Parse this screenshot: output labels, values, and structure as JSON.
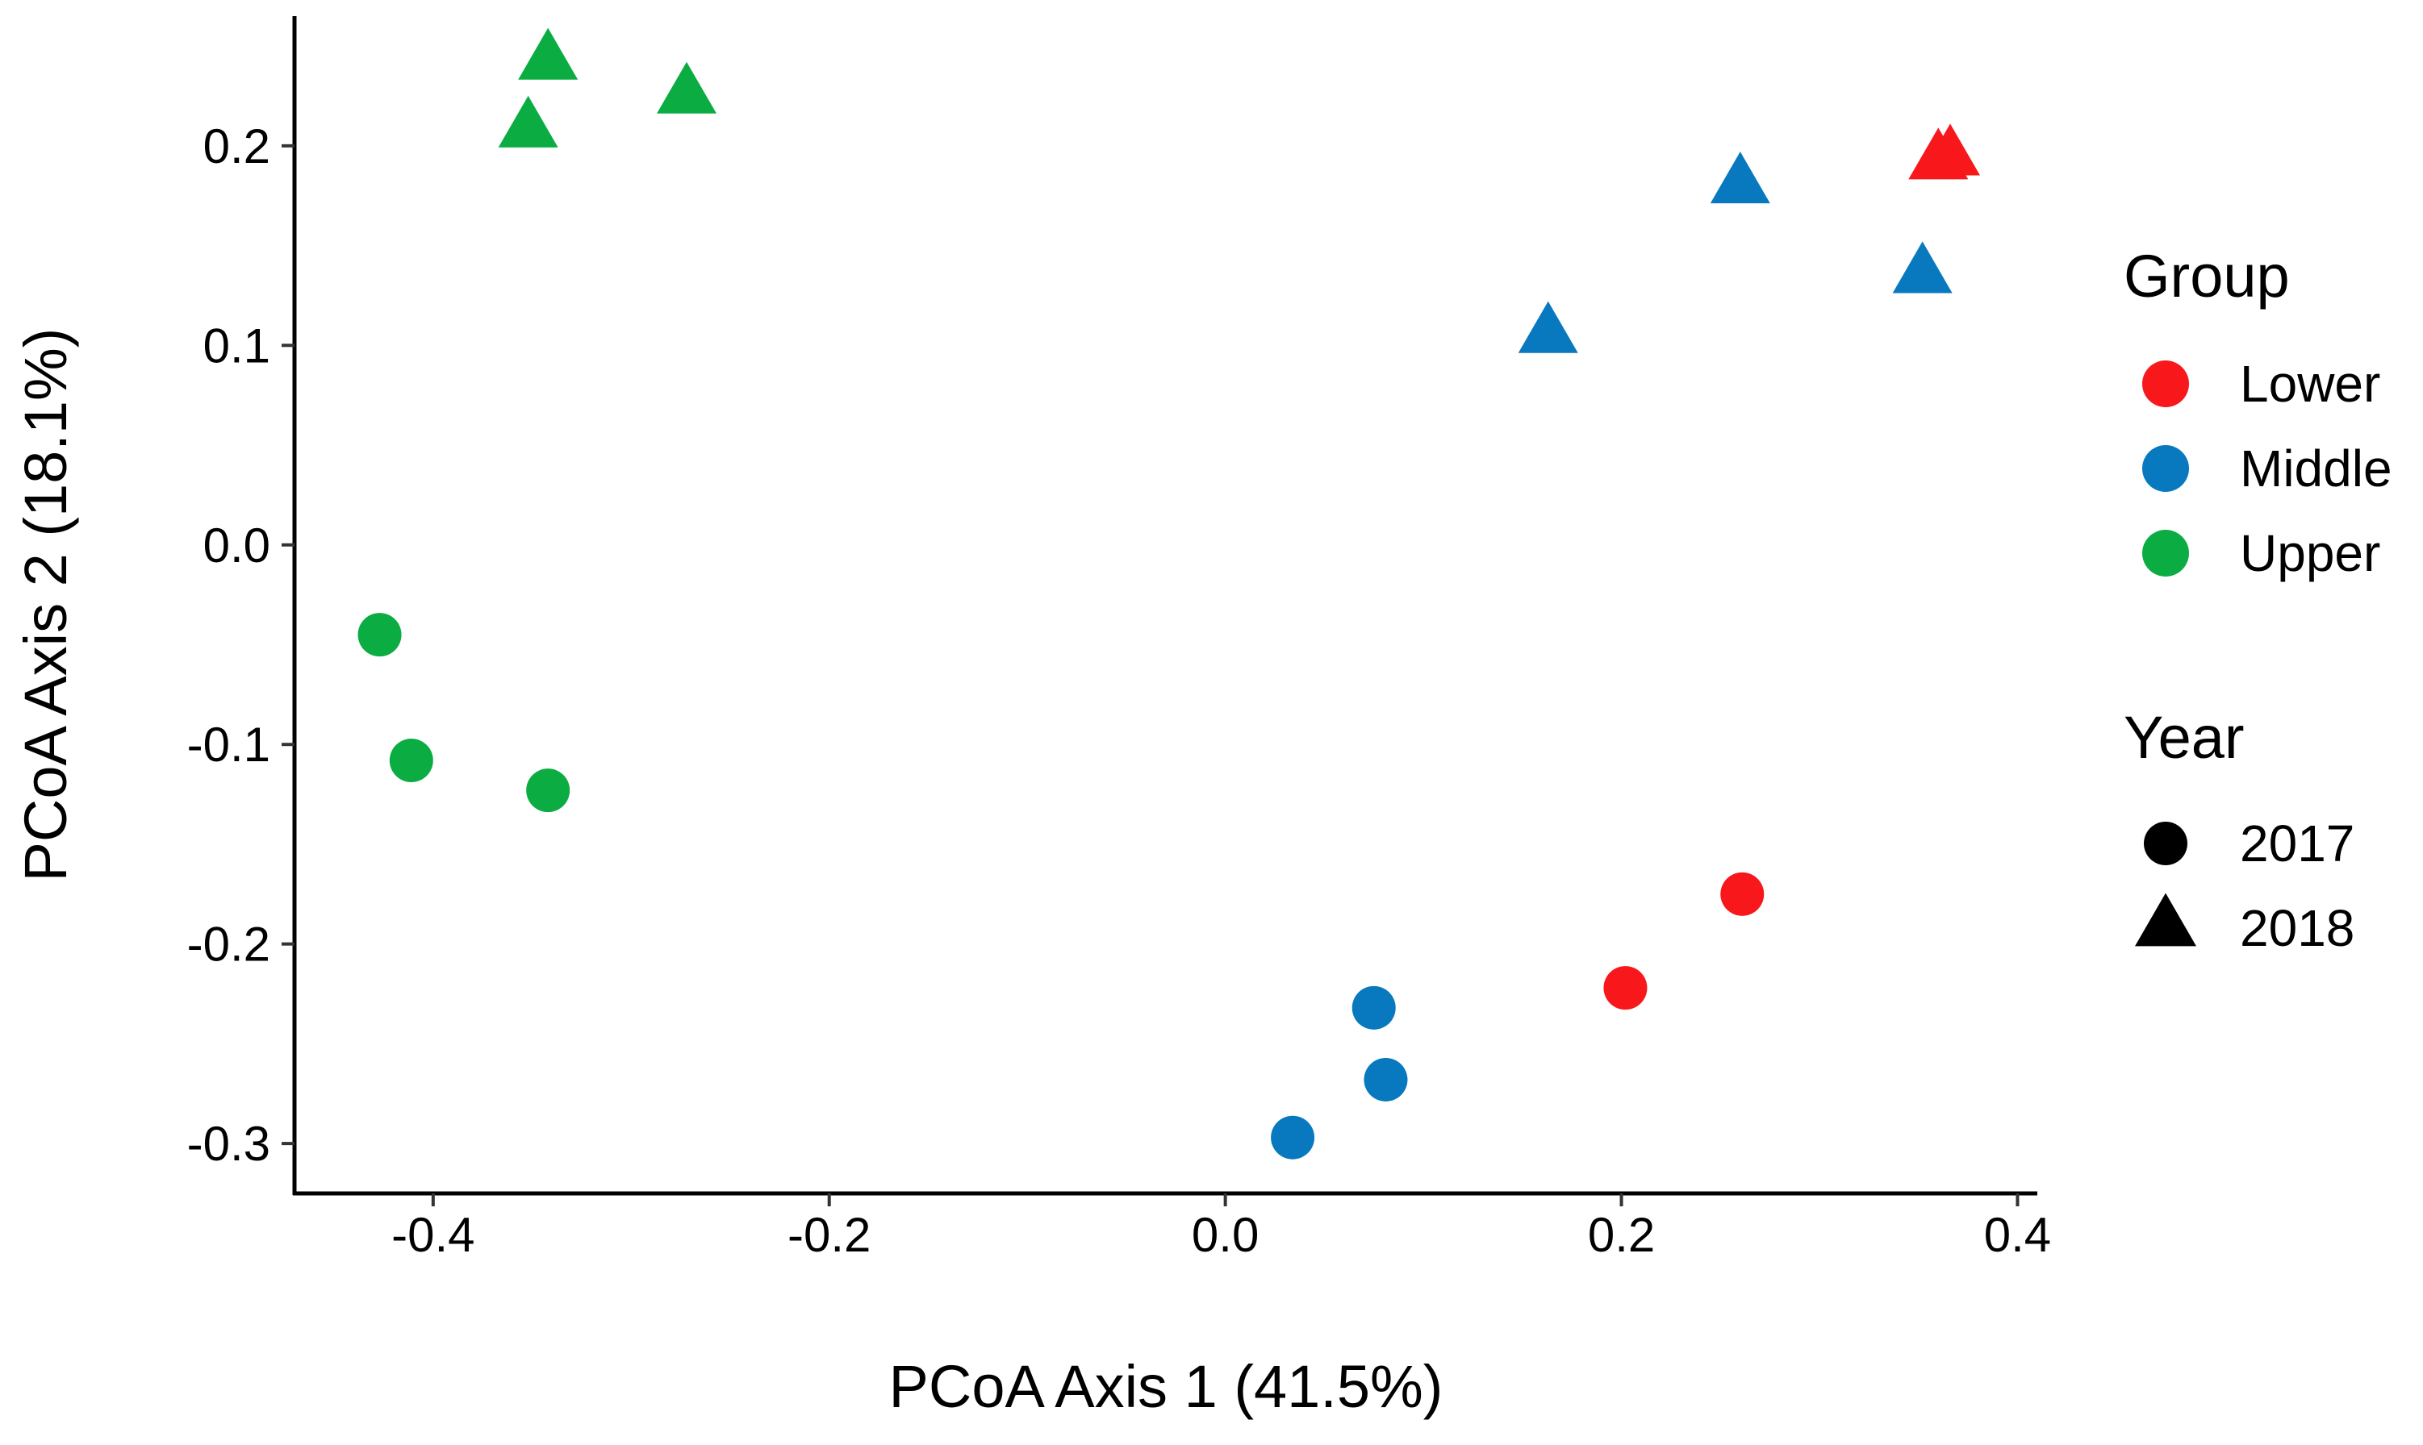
{
  "chart_data": {
    "type": "scatter",
    "title": "",
    "xlabel": "PCoA Axis 1 (41.5%)",
    "ylabel": "PCoA Axis 2 (18.1%)",
    "xlim": [
      -0.47,
      0.41
    ],
    "ylim": [
      -0.325,
      0.265
    ],
    "xticks": [
      -0.4,
      -0.2,
      0.0,
      0.2,
      0.4
    ],
    "xtick_labels": [
      "-0.4",
      "-0.2",
      "0.0",
      "0.2",
      "0.4"
    ],
    "yticks": [
      -0.3,
      -0.2,
      -0.1,
      0.0,
      0.1,
      0.2
    ],
    "ytick_labels": [
      "-0.3",
      "-0.2",
      "-0.1",
      "0.0",
      "0.1",
      "0.2"
    ],
    "grid": false,
    "legend_position": "right",
    "legend": {
      "group_title": "Group",
      "groups": [
        {
          "name": "Lower",
          "color": "#f8171b"
        },
        {
          "name": "Middle",
          "color": "#0979bf"
        },
        {
          "name": "Upper",
          "color": "#0bad43"
        }
      ],
      "year_title": "Year",
      "years": [
        {
          "name": "2017",
          "shape": "circle"
        },
        {
          "name": "2018",
          "shape": "triangle"
        }
      ]
    },
    "points": [
      {
        "group": "Upper",
        "year": "2018",
        "x": -0.342,
        "y": 0.242
      },
      {
        "group": "Upper",
        "year": "2018",
        "x": -0.352,
        "y": 0.208
      },
      {
        "group": "Upper",
        "year": "2018",
        "x": -0.272,
        "y": 0.225
      },
      {
        "group": "Upper",
        "year": "2017",
        "x": -0.427,
        "y": -0.045
      },
      {
        "group": "Upper",
        "year": "2017",
        "x": -0.411,
        "y": -0.108
      },
      {
        "group": "Upper",
        "year": "2017",
        "x": -0.342,
        "y": -0.123
      },
      {
        "group": "Middle",
        "year": "2018",
        "x": 0.163,
        "y": 0.105
      },
      {
        "group": "Middle",
        "year": "2018",
        "x": 0.26,
        "y": 0.18
      },
      {
        "group": "Middle",
        "year": "2018",
        "x": 0.352,
        "y": 0.135
      },
      {
        "group": "Middle",
        "year": "2017",
        "x": 0.075,
        "y": -0.232
      },
      {
        "group": "Middle",
        "year": "2017",
        "x": 0.081,
        "y": -0.268
      },
      {
        "group": "Middle",
        "year": "2017",
        "x": 0.034,
        "y": -0.297
      },
      {
        "group": "Lower",
        "year": "2018",
        "x": 0.36,
        "y": 0.192
      },
      {
        "group": "Lower",
        "year": "2018",
        "x": 0.366,
        "y": 0.194
      },
      {
        "group": "Lower",
        "year": "2017",
        "x": 0.202,
        "y": -0.222
      },
      {
        "group": "Lower",
        "year": "2017",
        "x": 0.261,
        "y": -0.175
      }
    ]
  }
}
